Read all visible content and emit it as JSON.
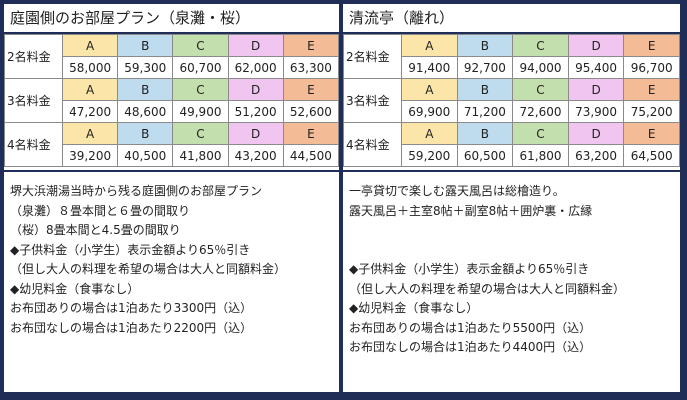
{
  "left": {
    "title": "庭園側のお部屋プラン（泉灘・桜）",
    "groups": [
      {
        "label": "2名料金",
        "cats": [
          "A",
          "B",
          "C",
          "D",
          "E"
        ],
        "prices": [
          "58,000",
          "59,300",
          "60,700",
          "62,000",
          "63,300"
        ]
      },
      {
        "label": "3名料金",
        "cats": [
          "A",
          "B",
          "C",
          "D",
          "E"
        ],
        "prices": [
          "47,200",
          "48,600",
          "49,900",
          "51,200",
          "52,600"
        ]
      },
      {
        "label": "4名料金",
        "cats": [
          "A",
          "B",
          "C",
          "D",
          "E"
        ],
        "prices": [
          "39,200",
          "40,500",
          "41,800",
          "43,200",
          "44,500"
        ]
      }
    ],
    "notes": [
      "堺大浜潮湯当時から残る庭園側のお部屋プラン",
      "（泉灘）８畳本間と６畳の間取り",
      "（桜）8畳本間と4.5畳の間取り",
      "◆子供料金（小学生）表示金額より65％引き",
      "（但し大人の料理を希望の場合は大人と同額料金）",
      "◆幼児料金（食事なし）",
      "お布団ありの場合は1泊あたり3300円（込）",
      "お布団なしの場合は1泊あたり2200円（込）"
    ]
  },
  "right": {
    "title": "清流亭（離れ）",
    "groups": [
      {
        "label": "2名料金",
        "cats": [
          "A",
          "B",
          "C",
          "D",
          "E"
        ],
        "prices": [
          "91,400",
          "92,700",
          "94,000",
          "95,400",
          "96,700"
        ]
      },
      {
        "label": "3名料金",
        "cats": [
          "A",
          "B",
          "C",
          "D",
          "E"
        ],
        "prices": [
          "69,900",
          "71,200",
          "72,600",
          "73,900",
          "75,200"
        ]
      },
      {
        "label": "4名料金",
        "cats": [
          "A",
          "B",
          "C",
          "D",
          "E"
        ],
        "prices": [
          "59,200",
          "60,500",
          "61,800",
          "63,200",
          "64,500"
        ]
      }
    ],
    "notes": [
      "一亭貸切で楽しむ露天風呂は総檜造り。",
      "露天風呂＋主室8帖＋副室8帖＋囲炉裏・広縁",
      "",
      "",
      "◆子供料金（小学生）表示金額より65％引き",
      "（但し大人の料理を希望の場合は大人と同額料金）",
      "◆幼児料金（食事なし）",
      "お布団ありの場合は1泊あたり5500円（込）",
      "お布団なしの場合は1泊あたり4400円（込）"
    ]
  },
  "colors": {
    "frame": "#1f2d57",
    "A": "#fbe5a9",
    "B": "#bfdcef",
    "C": "#c4dfae",
    "D": "#f0c6f0",
    "E": "#f3bb96"
  }
}
